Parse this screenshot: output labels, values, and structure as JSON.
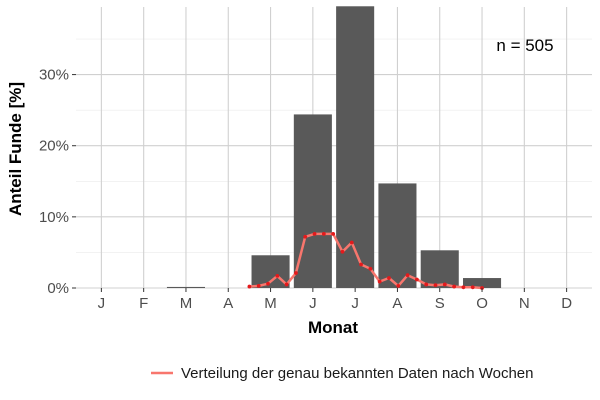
{
  "chart_data": {
    "type": "bar",
    "xlabel": "Monat",
    "ylabel": "Anteil Funde [%]",
    "annotation": "n = 505",
    "categories": [
      "J",
      "F",
      "M",
      "A",
      "M",
      "J",
      "J",
      "A",
      "S",
      "O",
      "N",
      "D"
    ],
    "yticks": [
      "0%",
      "10%",
      "20%",
      "30%"
    ],
    "ylim": [
      0,
      39.5
    ],
    "grid": true,
    "legend_position": "bottom",
    "series": [
      {
        "type": "bar",
        "values": [
          0,
          0,
          0.15,
          0,
          4.6,
          24.4,
          39.6,
          14.7,
          5.3,
          1.4,
          0,
          0
        ],
        "color": "#595959"
      },
      {
        "type": "line",
        "name": "Verteilung der genau bekannten Daten nach Wochen",
        "color": "#f8766d",
        "point_color": "#e41a1c",
        "x": [
          4.5,
          4.72,
          4.94,
          5.16,
          5.38,
          5.6,
          5.82,
          6.04,
          6.26,
          6.48,
          6.7,
          6.92,
          7.14,
          7.36,
          7.58,
          7.8,
          8.02,
          8.24,
          8.46,
          8.68,
          8.9,
          9.12,
          9.34,
          9.56,
          9.78,
          10.0
        ],
        "y": [
          0.2,
          0.3,
          0.6,
          1.7,
          0.5,
          2.1,
          7.2,
          7.6,
          7.6,
          7.6,
          5.1,
          6.4,
          3.3,
          2.7,
          0.9,
          1.4,
          0.3,
          1.8,
          1.2,
          0.5,
          0.4,
          0.5,
          0.2,
          0.1,
          0.1,
          0.0
        ]
      }
    ]
  }
}
